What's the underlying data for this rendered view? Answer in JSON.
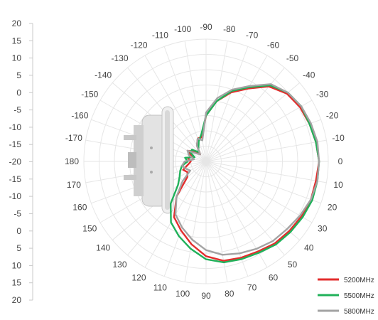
{
  "chart_data": {
    "type": "polar-line",
    "angle_labels": [
      "0",
      "-10",
      "-20",
      "-30",
      "-40",
      "-50",
      "-60",
      "-70",
      "-80",
      "-90",
      "-100",
      "-110",
      "-120",
      "-130",
      "-140",
      "-150",
      "-160",
      "-170",
      "180",
      "170",
      "160",
      "150",
      "140",
      "130",
      "120",
      "110",
      "100",
      "90",
      "80",
      "70",
      "60",
      "50",
      "40",
      "30",
      "20",
      "10"
    ],
    "radial_scale": {
      "ticks": [
        "20",
        "15",
        "10",
        "5",
        "0",
        "-5",
        "-10",
        "-15",
        "-20",
        "-15",
        "-10",
        "-5",
        "0",
        "5",
        "10",
        "15",
        "20"
      ],
      "range_db": [
        -20,
        20
      ]
    },
    "grid": true,
    "legend_position": "bottom-right",
    "series": [
      {
        "name": "5200MHz",
        "color": "#e32d2d",
        "angles_deg": [
          0,
          -10,
          -20,
          -30,
          -40,
          -50,
          -60,
          -70,
          -80,
          -90,
          -100,
          -110,
          -120,
          -130,
          -140,
          -150,
          -160,
          -170,
          180,
          170,
          160,
          150,
          140,
          130,
          120,
          110,
          100,
          90,
          80,
          70,
          60,
          50,
          40,
          30,
          20,
          10
        ],
        "gain_db": [
          17,
          16.5,
          16,
          15.5,
          14.5,
          12,
          7.5,
          4,
          0,
          -5,
          -12,
          -12,
          -14,
          -17,
          -15,
          -13,
          -15,
          -14,
          -15,
          -14,
          -12,
          -13,
          -12,
          -5,
          1,
          4,
          7.5,
          11,
          13,
          13.5,
          14,
          15,
          15.5,
          16,
          16.5,
          16.5
        ]
      },
      {
        "name": "5500MHz",
        "color": "#20b15a",
        "angles_deg": [
          0,
          -10,
          -20,
          -30,
          -40,
          -50,
          -60,
          -70,
          -80,
          -90,
          -100,
          -110,
          -120,
          -130,
          -140,
          -150,
          -160,
          -170,
          180,
          170,
          160,
          150,
          140,
          130,
          120,
          110,
          100,
          90,
          80,
          70,
          60,
          50,
          40,
          30,
          20,
          10
        ],
        "gain_db": [
          17,
          16.5,
          16,
          16,
          15,
          12.5,
          8,
          4.5,
          0,
          -5,
          -11,
          -13,
          -15,
          -16,
          -14,
          -14,
          -16,
          -13,
          -14,
          -12,
          -11,
          -10,
          -8,
          -2,
          3,
          6,
          9,
          12,
          13.5,
          14,
          14.5,
          15.5,
          16,
          16.5,
          17,
          17
        ]
      },
      {
        "name": "5800MHz",
        "color": "#a3a3a3",
        "angles_deg": [
          0,
          -10,
          -20,
          -30,
          -40,
          -50,
          -60,
          -70,
          -80,
          -90,
          -100,
          -110,
          -120,
          -130,
          -140,
          -150,
          -160,
          -170,
          180,
          170,
          160,
          150,
          140,
          130,
          120,
          110,
          100,
          90,
          80,
          70,
          60,
          50,
          40,
          30,
          20,
          10
        ],
        "gain_db": [
          17,
          17,
          16.5,
          16,
          15,
          13,
          8.5,
          5,
          1,
          -4,
          -13,
          -12,
          -14,
          -17,
          -16,
          -13,
          -14,
          -16,
          -13,
          -12,
          -13,
          -14,
          -10,
          -5,
          0,
          3,
          6,
          9,
          11,
          12,
          13,
          14,
          14.5,
          15.5,
          16.5,
          17
        ]
      }
    ]
  },
  "legend": [
    {
      "name": "5200MHz",
      "color": "#e32d2d"
    },
    {
      "name": "5500MHz",
      "color": "#20b15a"
    },
    {
      "name": "5800MHz",
      "color": "#a3a3a3"
    }
  ]
}
